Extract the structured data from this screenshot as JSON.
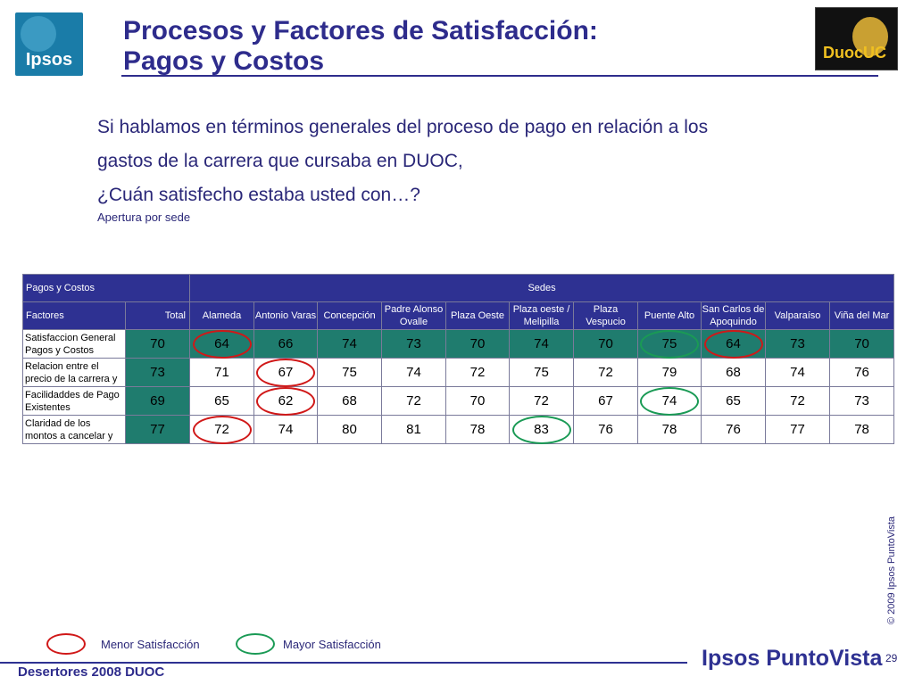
{
  "header": {
    "logo_left": "Ipsos",
    "logo_right": "DuocUC",
    "title_line1": "Procesos y Factores de Satisfacción:",
    "title_line2": "Pagos y Costos"
  },
  "question": {
    "line1": "Si hablamos en términos generales del proceso de pago en relación a los",
    "line2": "gastos de la carrera que cursaba en DUOC,",
    "line3": "¿Cuán satisfecho estaba usted con…?",
    "subtitle": "Apertura por sede"
  },
  "table": {
    "top_left": "Pagos y Costos",
    "group_header": "Sedes",
    "columns": [
      "Factores",
      "Total",
      "Alameda",
      "Antonio Varas",
      "Concepción",
      "Padre Alonso Ovalle",
      "Plaza Oeste",
      "Plaza oeste / Melipilla",
      "Plaza Vespucio",
      "Puente Alto",
      "San Carlos de Apoquindo",
      "Valparaíso",
      "Viña del Mar"
    ],
    "rows": [
      {
        "factor": "Satisfaccion General Pagos y Costos",
        "values": [
          "70",
          "64",
          "66",
          "74",
          "73",
          "70",
          "74",
          "70",
          "75",
          "64",
          "73",
          "70"
        ],
        "marks": [
          "",
          "red",
          "",
          "",
          "",
          "",
          "",
          "",
          "green",
          "red",
          "",
          ""
        ]
      },
      {
        "factor": "Relacion entre el precio de la carrera y",
        "values": [
          "73",
          "71",
          "67",
          "75",
          "74",
          "72",
          "75",
          "72",
          "79",
          "68",
          "74",
          "76"
        ],
        "marks": [
          "",
          "",
          "red",
          "",
          "",
          "",
          "",
          "",
          "",
          "",
          "",
          ""
        ]
      },
      {
        "factor": "Facilidaddes de Pago Existentes",
        "values": [
          "69",
          "65",
          "62",
          "68",
          "72",
          "70",
          "72",
          "67",
          "74",
          "65",
          "72",
          "73"
        ],
        "marks": [
          "",
          "",
          "red",
          "",
          "",
          "",
          "",
          "",
          "green",
          "",
          "",
          ""
        ]
      },
      {
        "factor": "Claridad de los montos a cancelar y",
        "values": [
          "77",
          "72",
          "74",
          "80",
          "81",
          "78",
          "83",
          "76",
          "78",
          "76",
          "77",
          "78"
        ],
        "marks": [
          "",
          "red",
          "",
          "",
          "",
          "",
          "green",
          "",
          "",
          "",
          "",
          ""
        ]
      }
    ]
  },
  "colors": {
    "header_bg": "#2e3192",
    "total_bg": "#1f7c6e",
    "ring_red": "#d01818",
    "ring_green": "#1a9a55"
  },
  "legend": {
    "low_label": "Menor Satisfacción",
    "high_label": "Mayor Satisfacción"
  },
  "footer": {
    "copyright": "© 2009 Ipsos PuntoVista",
    "left_text": "Desertores 2008 DUOC",
    "brand": "Ipsos PuntoVista",
    "page_number": "29"
  }
}
